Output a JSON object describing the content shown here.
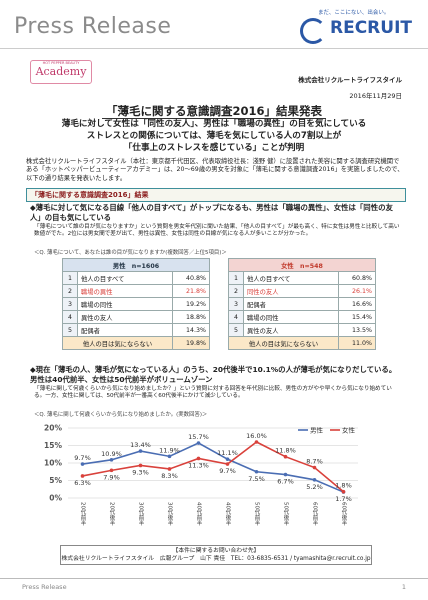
{
  "header": {
    "press_release": "Press Release",
    "tagline": "まだ、ここにない、出会い。",
    "brand": "RECRUIT",
    "academy_top": "HOT PEPPER BEAUTY",
    "academy": "Academy",
    "company": "株式会社リクルートライフスタイル",
    "date": "2016年11月29日"
  },
  "title": "「薄毛に関する意識調査2016」結果発表",
  "subtitle": [
    "薄毛に対して女性は「同性の友人」、男性は「職場の異性」の目を気にしている",
    "ストレスとの関係については、薄毛を気にしている人の7割以上が",
    "「仕事上のストレスを感じている」ことが判明"
  ],
  "intro": "株式会社リクルートライフスタイル（本社：東京都千代田区、代表取締役社長：淺野 健）に設置された美容に関する調査研究機関である「ホットペッパービューティーアカデミー」は、20～69歳の男女を対象に「薄毛に関する意識調査2016」を実施しましたので、以下の通り結果を発表いたします。",
  "section": "「薄毛に関する意識調査2016」結果",
  "finding1": {
    "heading": "◆薄毛に対して気になる目線「他人の目すべて」がトップになるも、男性は「職場の異性」、女性は「同性の友人」の目も気にしている",
    "text": "「薄毛について誰の目が気になりますか」という質問を男女年代別に聞いた結果、「他人の目すべて」が最も高く、特に女性は男性と比較して高い数値がでた。2位には男女間で差が出て、男性は異性、女性は同性の目線が気になる人が多いことが分かった。",
    "question": "＜Q. 薄毛について、あなたは誰の目が気になりますか(複数回答／上位5項目)＞"
  },
  "tables": [
    {
      "header": "男性　n=1606",
      "rows": [
        {
          "rank": "1",
          "label": "他人の目すべて",
          "value": "40.8%"
        },
        {
          "rank": "2",
          "label": "職場の異性",
          "value": "21.8%"
        },
        {
          "rank": "3",
          "label": "職場の同性",
          "value": "19.2%"
        },
        {
          "rank": "4",
          "label": "異性の友人",
          "value": "18.8%"
        },
        {
          "rank": "5",
          "label": "配偶者",
          "value": "14.3%"
        },
        {
          "label": "他人の目は気にならない",
          "value": "19.8%"
        }
      ]
    },
    {
      "header": "女性　n=548",
      "rows": [
        {
          "rank": "1",
          "label": "他人の目すべて",
          "value": "60.8%"
        },
        {
          "rank": "2",
          "label": "同性の友人",
          "value": "26.1%"
        },
        {
          "rank": "3",
          "label": "配偶者",
          "value": "16.6%"
        },
        {
          "rank": "4",
          "label": "職場の同性",
          "value": "15.4%"
        },
        {
          "rank": "5",
          "label": "異性の友人",
          "value": "13.5%"
        },
        {
          "label": "他人の目は気にならない",
          "value": "11.0%"
        }
      ]
    }
  ],
  "finding2": {
    "heading": "◆現在「薄毛の人、薄毛が気になっている人」のうち、20代後半で10.1%の人が薄毛が気になりだしている。男性は40代前半、女性は50代前半がボリュームゾーン",
    "text": "「薄毛に関して何歳くらいから気になり始めましたか？」という質問に対する回答を年代別に比較、男性の方がやや早くから気になり始めている。一方、女性に関しては、50代前半が一番高く60代後半にかけて減少している。",
    "question": "＜Q. 薄毛に関して何歳くらいから気になり始めましたか。(実数回答)＞"
  },
  "chart_data": {
    "type": "line",
    "categories": [
      "20代前半",
      "20代後半",
      "30代前半",
      "30代後半",
      "40代前半",
      "40代後半",
      "50代前半",
      "50代後半",
      "60代前半",
      "60代後半"
    ],
    "series": [
      {
        "name": "男性",
        "color": "#4a6db3",
        "values": [
          9.7,
          10.9,
          13.4,
          11.9,
          15.7,
          11.1,
          7.5,
          6.7,
          5.2,
          1.7
        ],
        "value_labels": [
          "9.7%",
          "10.9%",
          "13.4%",
          "11.9%",
          "15.7%",
          "11.1%",
          "7.5%",
          "6.7%",
          "5.2%",
          "1.7%"
        ]
      },
      {
        "name": "女性",
        "color": "#d9413b",
        "values": [
          6.3,
          7.9,
          9.3,
          8.3,
          11.3,
          9.7,
          16.0,
          11.8,
          8.7,
          1.8
        ],
        "value_labels": [
          "6.3%",
          "7.9%",
          "9.3%",
          "8.3%",
          "11.3%",
          "9.7%",
          "16.0%",
          "11.8%",
          "8.7%",
          "1.8%"
        ]
      }
    ],
    "ylim": [
      0,
      20
    ],
    "yticks": [
      {
        "value": 0,
        "label": "0%"
      },
      {
        "value": 5,
        "label": "5%"
      },
      {
        "value": 10,
        "label": "10%"
      },
      {
        "value": 15,
        "label": "15%"
      },
      {
        "value": 20,
        "label": "20%"
      }
    ],
    "grid": true,
    "legend": "top-right"
  },
  "contact": {
    "heading": "【本件に関するお問い合わせ先】",
    "text": "株式会社リクルートライフスタイル　広報グループ　山下 貴佳　TEL：03-6835-6531 / tyamashita@r.recruit.co.jp"
  },
  "footer": {
    "label": "Press Release",
    "page": "1"
  }
}
